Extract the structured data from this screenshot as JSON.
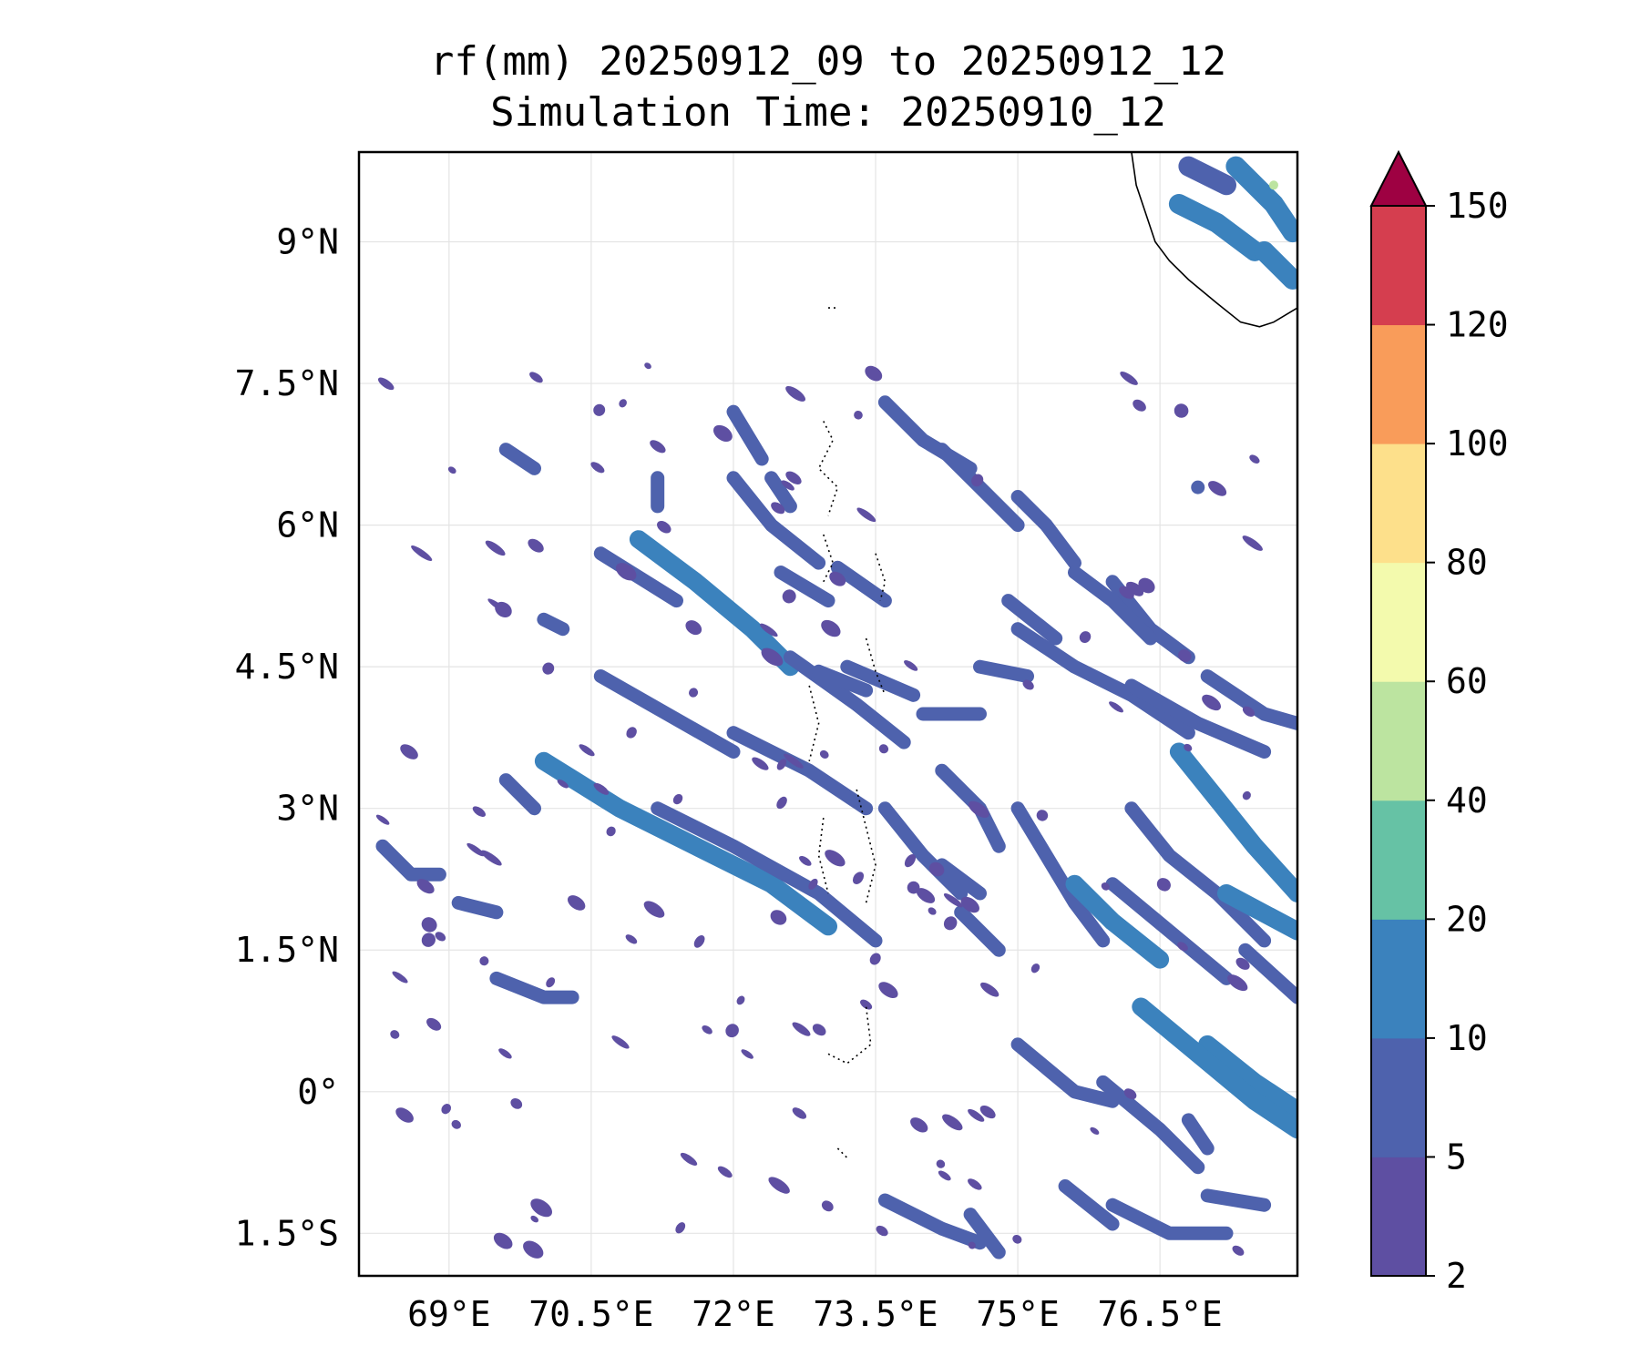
{
  "chart_data": {
    "type": "heatmap",
    "title": "rf(mm) 20250912_09 to 20250912_12",
    "subtitle": "Simulation Time: 20250910_12",
    "x_ticks": [
      {
        "value": 69.0,
        "label": "69°E"
      },
      {
        "value": 70.5,
        "label": "70.5°E"
      },
      {
        "value": 72.0,
        "label": "72°E"
      },
      {
        "value": 73.5,
        "label": "73.5°E"
      },
      {
        "value": 75.0,
        "label": "75°E"
      },
      {
        "value": 76.5,
        "label": "76.5°E"
      }
    ],
    "y_ticks": [
      {
        "value": 9.0,
        "label": "9°N"
      },
      {
        "value": 7.5,
        "label": "7.5°N"
      },
      {
        "value": 6.0,
        "label": "6°N"
      },
      {
        "value": 4.5,
        "label": "4.5°N"
      },
      {
        "value": 3.0,
        "label": "3°N"
      },
      {
        "value": 1.5,
        "label": "1.5°N"
      },
      {
        "value": 0.0,
        "label": "0°"
      },
      {
        "value": -1.5,
        "label": "1.5°S"
      }
    ],
    "xlim": [
      68.05,
      77.95
    ],
    "ylim": [
      -1.95,
      9.95
    ],
    "grid": true,
    "colorbar": {
      "levels": [
        2,
        5,
        10,
        20,
        40,
        60,
        80,
        100,
        120,
        150
      ],
      "tick_labels": [
        "2",
        "5",
        "10",
        "20",
        "40",
        "60",
        "80",
        "100",
        "120",
        "150"
      ],
      "colors": [
        "#5e4fa2",
        "#4e62ad",
        "#3b82bd",
        "#66c2a5",
        "#bce4a0",
        "#f3faad",
        "#fde08b",
        "#f99c5a",
        "#d53e4f"
      ],
      "extend_color": "#9e0142",
      "extend": "max"
    },
    "rain_bands": [
      {
        "points": [
          [
            71.0,
            5.85
          ],
          [
            71.6,
            5.4
          ],
          [
            72.2,
            4.9
          ],
          [
            72.6,
            4.5
          ]
        ],
        "level": 10
      },
      {
        "points": [
          [
            70.6,
            5.7
          ],
          [
            71.4,
            5.2
          ]
        ],
        "level": 5
      },
      {
        "points": [
          [
            70.0,
            3.5
          ],
          [
            70.8,
            3.0
          ],
          [
            71.6,
            2.6
          ],
          [
            72.4,
            2.2
          ],
          [
            73.0,
            1.75
          ]
        ],
        "level": 10
      },
      {
        "points": [
          [
            71.2,
            3.0
          ],
          [
            72.0,
            2.6
          ],
          [
            72.9,
            2.1
          ],
          [
            73.5,
            1.6
          ]
        ],
        "level": 5
      },
      {
        "points": [
          [
            72.0,
            3.8
          ],
          [
            72.8,
            3.4
          ],
          [
            73.4,
            3.0
          ]
        ],
        "level": 5
      },
      {
        "points": [
          [
            70.6,
            4.4
          ],
          [
            71.3,
            4.0
          ],
          [
            72.0,
            3.6
          ]
        ],
        "level": 5
      },
      {
        "points": [
          [
            72.6,
            4.6
          ],
          [
            73.3,
            4.1
          ],
          [
            73.8,
            3.7
          ]
        ],
        "level": 5
      },
      {
        "points": [
          [
            73.2,
            4.5
          ],
          [
            73.9,
            4.2
          ]
        ],
        "level": 5
      },
      {
        "points": [
          [
            72.5,
            5.5
          ],
          [
            73.0,
            5.2
          ]
        ],
        "level": 5
      },
      {
        "points": [
          [
            73.1,
            5.55
          ],
          [
            73.6,
            5.2
          ]
        ],
        "level": 5
      },
      {
        "points": [
          [
            72.0,
            6.5
          ],
          [
            72.4,
            6.0
          ],
          [
            72.9,
            5.6
          ]
        ],
        "level": 5
      },
      {
        "points": [
          [
            72.0,
            7.2
          ],
          [
            72.3,
            6.7
          ]
        ],
        "level": 5
      },
      {
        "points": [
          [
            73.6,
            7.3
          ],
          [
            74.0,
            6.9
          ],
          [
            74.5,
            6.6
          ]
        ],
        "level": 5
      },
      {
        "points": [
          [
            74.2,
            6.8
          ],
          [
            74.6,
            6.4
          ],
          [
            75.0,
            6.0
          ]
        ],
        "level": 5
      },
      {
        "points": [
          [
            75.0,
            6.3
          ],
          [
            75.3,
            6.0
          ],
          [
            75.6,
            5.6
          ]
        ],
        "level": 5
      },
      {
        "points": [
          [
            76.0,
            5.4
          ],
          [
            76.4,
            4.9
          ],
          [
            76.8,
            4.6
          ]
        ],
        "level": 5
      },
      {
        "points": [
          [
            75.6,
            5.5
          ],
          [
            76.0,
            5.2
          ],
          [
            76.4,
            4.8
          ]
        ],
        "level": 5
      },
      {
        "points": [
          [
            75.0,
            4.9
          ],
          [
            75.6,
            4.5
          ],
          [
            76.2,
            4.2
          ],
          [
            76.8,
            3.8
          ]
        ],
        "level": 5
      },
      {
        "points": [
          [
            76.2,
            4.3
          ],
          [
            76.9,
            3.9
          ],
          [
            77.6,
            3.6
          ]
        ],
        "level": 5
      },
      {
        "points": [
          [
            77.0,
            4.4
          ],
          [
            77.6,
            4.0
          ],
          [
            77.95,
            3.9
          ]
        ],
        "level": 5
      },
      {
        "points": [
          [
            73.6,
            3.0
          ],
          [
            74.0,
            2.5
          ],
          [
            74.4,
            2.1
          ]
        ],
        "level": 5
      },
      {
        "points": [
          [
            74.2,
            3.4
          ],
          [
            74.6,
            3.0
          ],
          [
            74.8,
            2.6
          ]
        ],
        "level": 5
      },
      {
        "points": [
          [
            75.0,
            3.0
          ],
          [
            75.3,
            2.5
          ],
          [
            75.6,
            2.0
          ],
          [
            75.9,
            1.6
          ]
        ],
        "level": 5
      },
      {
        "points": [
          [
            75.6,
            2.2
          ],
          [
            76.0,
            1.8
          ],
          [
            76.5,
            1.4
          ]
        ],
        "level": 10
      },
      {
        "points": [
          [
            76.2,
            3.0
          ],
          [
            76.6,
            2.5
          ],
          [
            77.1,
            2.1
          ],
          [
            77.6,
            1.6
          ]
        ],
        "level": 5
      },
      {
        "points": [
          [
            76.7,
            3.6
          ],
          [
            77.1,
            3.1
          ],
          [
            77.5,
            2.6
          ],
          [
            77.95,
            2.1
          ]
        ],
        "level": 10
      },
      {
        "points": [
          [
            76.0,
            2.2
          ],
          [
            76.6,
            1.7
          ],
          [
            77.2,
            1.2
          ]
        ],
        "level": 5
      },
      {
        "points": [
          [
            77.2,
            2.1
          ],
          [
            77.95,
            1.7
          ]
        ],
        "level": 10
      },
      {
        "points": [
          [
            77.4,
            1.5
          ],
          [
            77.95,
            1.0
          ]
        ],
        "level": 5
      },
      {
        "points": [
          [
            77.0,
            0.5
          ],
          [
            77.5,
            0.1
          ],
          [
            77.95,
            -0.2
          ]
        ],
        "level": 10
      },
      {
        "points": [
          [
            76.3,
            0.9
          ],
          [
            76.9,
            0.4
          ],
          [
            77.5,
            -0.1
          ],
          [
            77.95,
            -0.4
          ]
        ],
        "level": 10
      },
      {
        "points": [
          [
            75.0,
            0.5
          ],
          [
            75.6,
            0.0
          ],
          [
            76.0,
            -0.1
          ]
        ],
        "level": 5
      },
      {
        "points": [
          [
            75.9,
            0.1
          ],
          [
            76.5,
            -0.4
          ],
          [
            76.9,
            -0.8
          ]
        ],
        "level": 5
      },
      {
        "points": [
          [
            74.5,
            -1.3
          ],
          [
            74.8,
            -1.7
          ]
        ],
        "level": 5
      },
      {
        "points": [
          [
            75.5,
            -1.0
          ],
          [
            76.0,
            -1.4
          ]
        ],
        "level": 5
      },
      {
        "points": [
          [
            73.6,
            -1.15
          ],
          [
            74.2,
            -1.45
          ],
          [
            74.6,
            -1.6
          ]
        ],
        "level": 5
      },
      {
        "points": [
          [
            76.0,
            -1.2
          ],
          [
            76.6,
            -1.5
          ],
          [
            77.2,
            -1.5
          ]
        ],
        "level": 5
      },
      {
        "points": [
          [
            77.0,
            -1.1
          ],
          [
            77.6,
            -1.2
          ]
        ],
        "level": 5
      },
      {
        "points": [
          [
            69.1,
            2.0
          ],
          [
            69.5,
            1.9
          ]
        ],
        "level": 5
      },
      {
        "points": [
          [
            69.5,
            1.2
          ],
          [
            70.0,
            1.0
          ],
          [
            70.3,
            1.0
          ]
        ],
        "level": 5
      },
      {
        "points": [
          [
            68.3,
            2.6
          ],
          [
            68.6,
            2.3
          ],
          [
            68.9,
            2.3
          ]
        ],
        "level": 5
      },
      {
        "points": [
          [
            69.6,
            3.3
          ],
          [
            69.9,
            3.0
          ]
        ],
        "level": 5
      },
      {
        "points": [
          [
            74.4,
            1.9
          ],
          [
            74.8,
            1.5
          ]
        ],
        "level": 5
      },
      {
        "points": [
          [
            74.0,
            4.0
          ],
          [
            74.6,
            4.0
          ]
        ],
        "level": 5
      },
      {
        "points": [
          [
            74.9,
            5.2
          ],
          [
            75.4,
            4.8
          ]
        ],
        "level": 5
      },
      {
        "points": [
          [
            76.9,
            6.4
          ]
        ],
        "level": 5
      },
      {
        "points": [
          [
            72.9,
            4.45
          ],
          [
            73.4,
            4.25
          ]
        ],
        "level": 5
      },
      {
        "points": [
          [
            74.6,
            4.5
          ],
          [
            75.1,
            4.4
          ]
        ],
        "level": 5
      },
      {
        "points": [
          [
            72.4,
            6.5
          ],
          [
            72.6,
            6.2
          ]
        ],
        "level": 5
      },
      {
        "points": [
          [
            71.2,
            6.5
          ],
          [
            71.2,
            6.2
          ]
        ],
        "level": 5
      },
      {
        "points": [
          [
            69.6,
            6.8
          ],
          [
            69.9,
            6.6
          ]
        ],
        "level": 5
      },
      {
        "points": [
          [
            70.0,
            5.0
          ],
          [
            70.2,
            4.9
          ]
        ],
        "level": 5
      },
      {
        "points": [
          [
            74.2,
            2.4
          ],
          [
            74.6,
            2.1
          ]
        ],
        "level": 5
      },
      {
        "points": [
          [
            76.8,
            -0.3
          ],
          [
            77.0,
            -0.6
          ]
        ],
        "level": 5
      }
    ],
    "kerala_rain": [
      {
        "points": [
          [
            76.7,
            9.4
          ],
          [
            77.1,
            9.2
          ],
          [
            77.5,
            8.9
          ]
        ],
        "level": 10
      },
      {
        "points": [
          [
            77.3,
            9.8
          ],
          [
            77.7,
            9.4
          ],
          [
            77.9,
            9.1
          ]
        ],
        "level": 10
      },
      {
        "points": [
          [
            77.6,
            8.9
          ],
          [
            77.9,
            8.6
          ]
        ],
        "level": 10
      },
      {
        "points": [
          [
            76.8,
            9.8
          ],
          [
            77.2,
            9.6
          ]
        ],
        "level": 5
      },
      {
        "points": [
          [
            77.7,
            9.6
          ]
        ],
        "level": 40
      }
    ]
  }
}
